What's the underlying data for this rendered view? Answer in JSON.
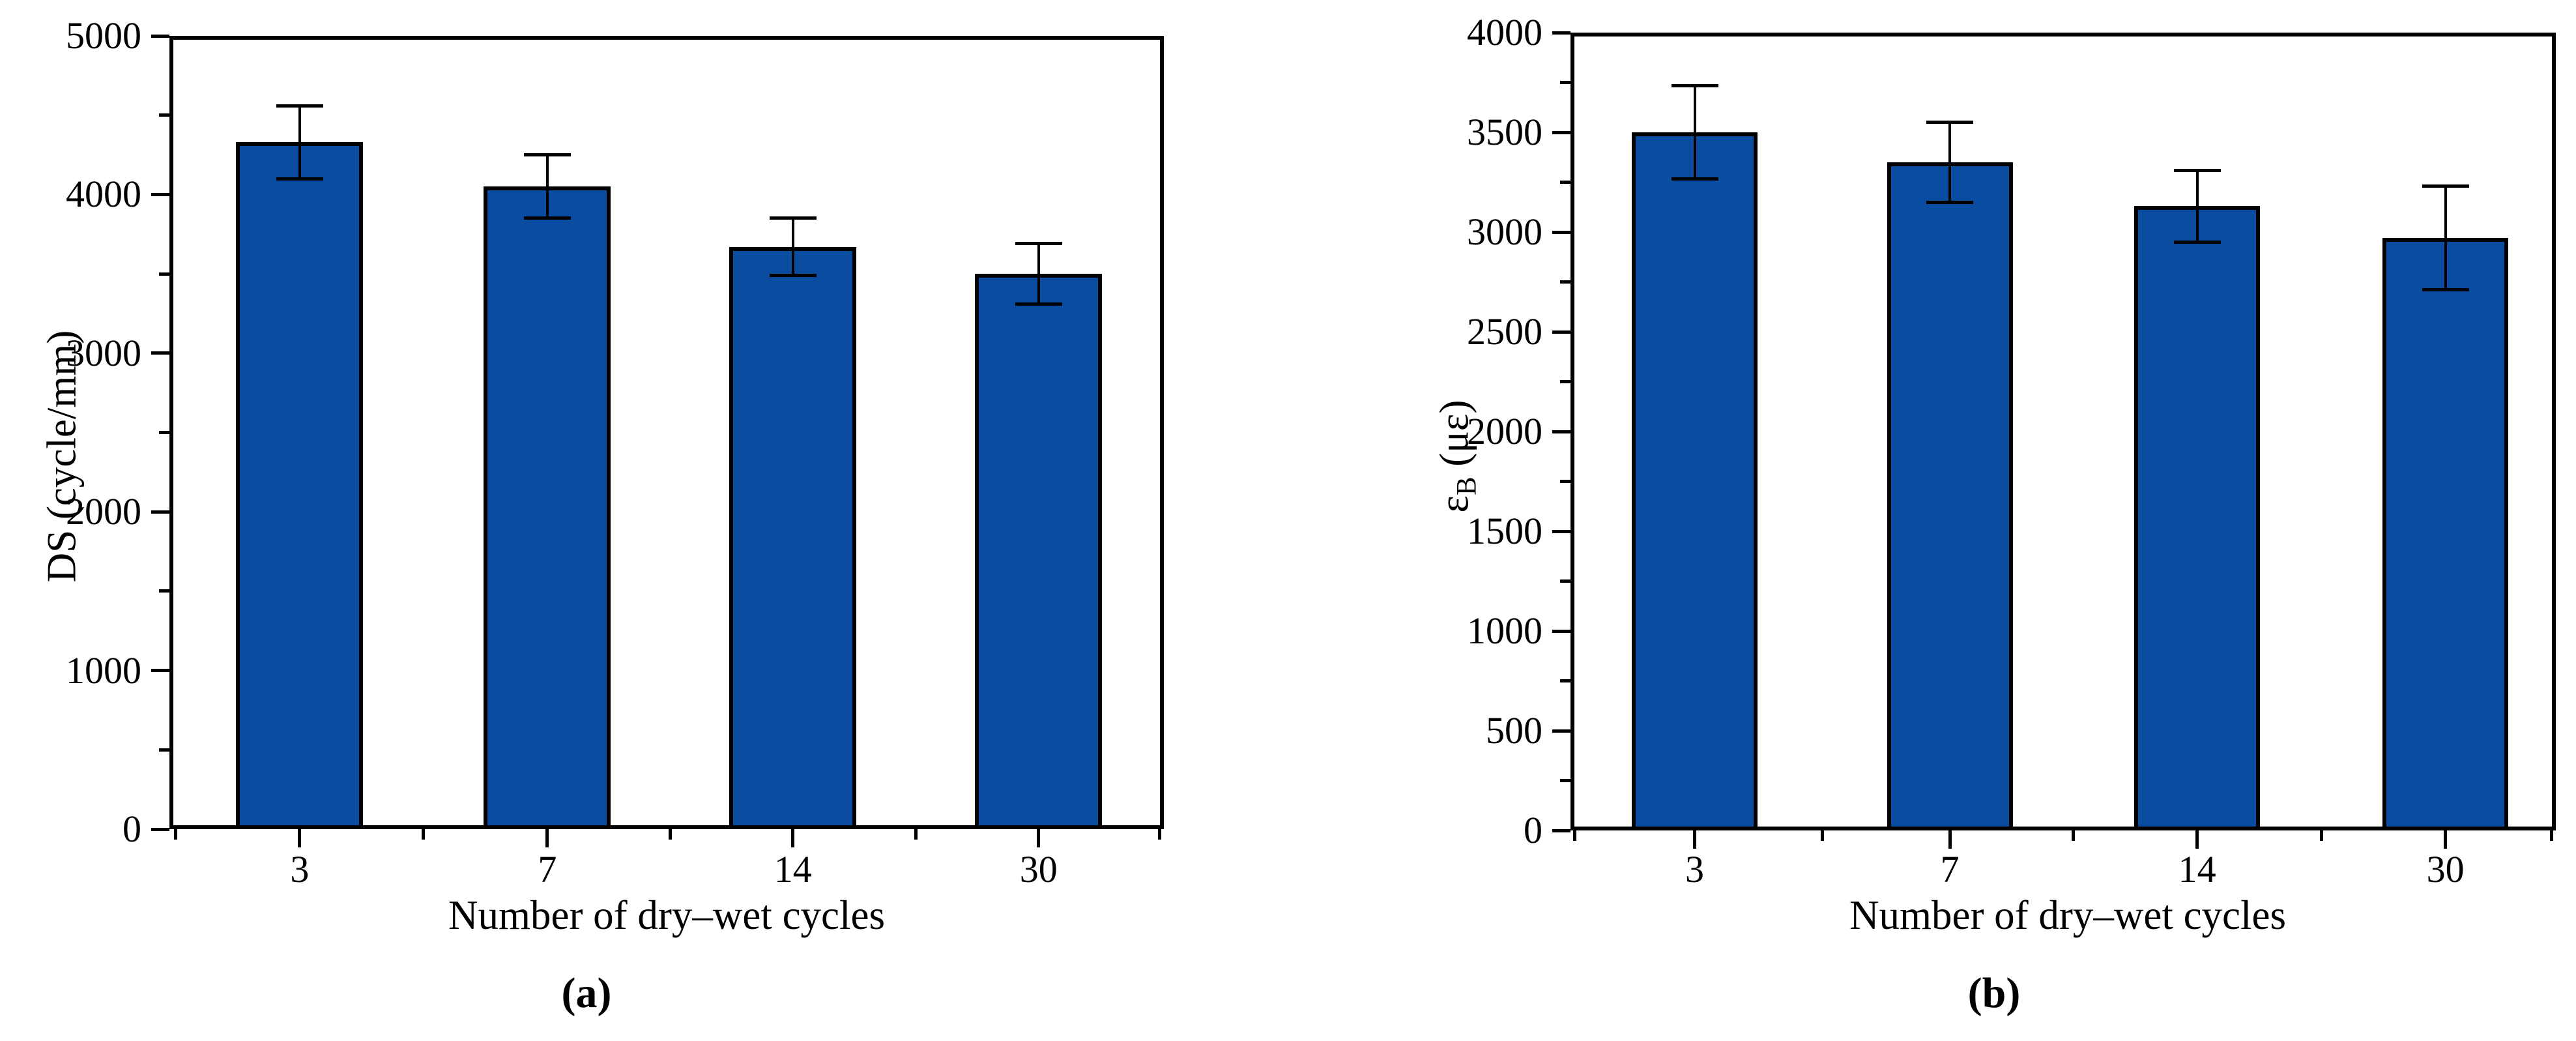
{
  "figure": {
    "background": "#ffffff",
    "axis_color": "#000000"
  },
  "chart_data": [
    {
      "type": "bar",
      "panel_label": "(a)",
      "title": "",
      "xlabel": "Number of dry–wet cycles",
      "ylabel": "DS (cycle/mm)",
      "ylabel_parts": [
        {
          "t": "DS (cycle/mm)"
        }
      ],
      "categories": [
        "3",
        "7",
        "14",
        "30"
      ],
      "values": [
        4330,
        4050,
        3670,
        3500
      ],
      "errors": [
        230,
        200,
        180,
        190
      ],
      "ylim": [
        0,
        5000
      ],
      "ytick_step": 1000,
      "yminor_step": 500,
      "yticks": [
        "5000",
        "4000",
        "3000",
        "2000",
        "1000",
        "0"
      ],
      "grid": "off",
      "legend": "none",
      "bar_color": "#0a4c9f",
      "bar_edge_color": "#000000",
      "error_bar_color": "#000000"
    },
    {
      "type": "bar",
      "panel_label": "(b)",
      "title": "",
      "xlabel": "Number of dry–wet cycles",
      "ylabel": "εB (με)",
      "ylabel_parts": [
        {
          "t": "ε"
        },
        {
          "t": "B",
          "sub": true
        },
        {
          "t": " (με)"
        }
      ],
      "categories": [
        "3",
        "7",
        "14",
        "30"
      ],
      "values": [
        3500,
        3350,
        3130,
        2970
      ],
      "errors": [
        235,
        200,
        180,
        260
      ],
      "ylim": [
        0,
        4000
      ],
      "ytick_step": 500,
      "yminor_step": 250,
      "yticks": [
        "4000",
        "3500",
        "3000",
        "2500",
        "2000",
        "1500",
        "1000",
        "500",
        "0"
      ],
      "grid": "off",
      "legend": "none",
      "bar_color": "#0a4c9f",
      "bar_edge_color": "#000000",
      "error_bar_color": "#000000"
    }
  ]
}
